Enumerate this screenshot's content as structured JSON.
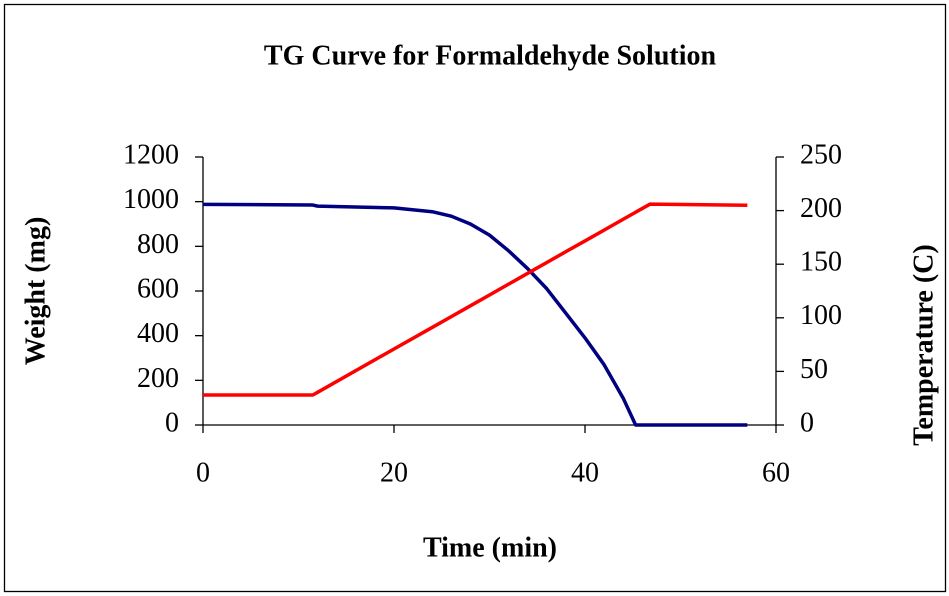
{
  "chart_data": {
    "type": "line",
    "title": "TG Curve for Formaldehyde Solution",
    "x_label": "Time (min)",
    "y_label": "Weight (mg)",
    "y2_label": "Temperature (C)",
    "x": [
      0,
      11.5,
      12,
      20,
      24,
      26,
      28,
      30,
      32,
      34,
      36,
      38,
      40,
      42,
      44,
      45.3,
      46.8,
      57
    ],
    "series": [
      {
        "name": "Weight",
        "color": "#000080",
        "values": [
          988,
          985,
          980,
          972,
          955,
          935,
          900,
          850,
          780,
          700,
          610,
          500,
          390,
          270,
          120,
          0,
          0,
          0
        ]
      },
      {
        "name": "Temperature",
        "color": "#ff0000",
        "axis": "y2",
        "values": [
          28,
          28,
          30.5,
          70.9,
          91,
          101.1,
          111.2,
          121.3,
          131.4,
          141.5,
          151.6,
          161.7,
          171.7,
          181.8,
          191.9,
          198.5,
          206,
          205
        ]
      }
    ],
    "xlim": [
      0,
      60
    ],
    "xticks": [
      0,
      20,
      40,
      60
    ],
    "ylim": [
      0,
      1200
    ],
    "yticks": [
      0,
      200,
      400,
      600,
      800,
      1000,
      1200
    ],
    "y2lim": [
      0,
      250
    ],
    "y2ticks": [
      0,
      50,
      100,
      150,
      200,
      250
    ],
    "grid": false
  }
}
